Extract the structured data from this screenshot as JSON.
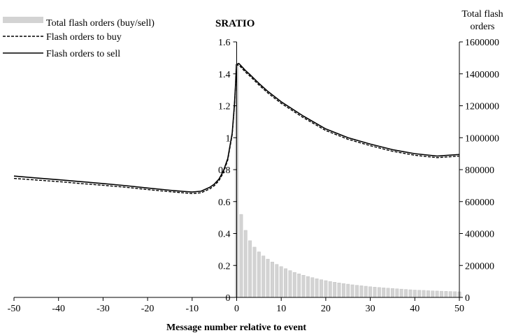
{
  "chart_data": {
    "type": "line",
    "title": "SRATIO",
    "xlabel": "Message number relative to event",
    "ylabel": "",
    "y2label_lines": [
      "Total flash",
      "orders"
    ],
    "xlim": [
      -50,
      50
    ],
    "ylim": [
      0,
      1.6
    ],
    "y2lim": [
      0,
      1600000
    ],
    "x_ticks": [
      "-50",
      "-40",
      "-30",
      "-20",
      "-10",
      "0",
      "10",
      "20",
      "30",
      "40",
      "50"
    ],
    "y_ticks": [
      "0",
      "0.2",
      "0.4",
      "0.6",
      "0.8",
      "1",
      "1.2",
      "1.4",
      "1.6"
    ],
    "y2_ticks": [
      "0",
      "200000",
      "400000",
      "600000",
      "800000",
      "1000000",
      "1200000",
      "1400000",
      "1600000"
    ],
    "legend_position": "top-left",
    "grid": false,
    "bars": {
      "name": "Total flash orders (buy/sell)",
      "axis": "right",
      "color": "#d3d3d3",
      "x": [
        0,
        1,
        2,
        3,
        4,
        5,
        6,
        7,
        8,
        9,
        10,
        11,
        12,
        13,
        14,
        15,
        16,
        17,
        18,
        19,
        20,
        21,
        22,
        23,
        24,
        25,
        26,
        27,
        28,
        29,
        30,
        31,
        32,
        33,
        34,
        35,
        36,
        37,
        38,
        39,
        40,
        41,
        42,
        43,
        44,
        45,
        46,
        47,
        48,
        49,
        50
      ],
      "values": [
        1460000,
        520000,
        420000,
        355000,
        315000,
        285000,
        260000,
        240000,
        222000,
        207000,
        193000,
        180000,
        168000,
        157000,
        148000,
        139000,
        131000,
        124000,
        117000,
        111000,
        105000,
        100000,
        95000,
        91000,
        87000,
        83000,
        79000,
        76000,
        73000,
        70000,
        67000,
        64000,
        62000,
        60000,
        58000,
        56000,
        54000,
        52000,
        50000,
        48000,
        46000,
        45000,
        44000,
        42000,
        41000,
        40000,
        39000,
        38000,
        37000,
        36000,
        35000
      ]
    },
    "series": [
      {
        "name": "Flash orders to buy",
        "style": "dashed",
        "x": [
          -50,
          -45,
          -40,
          -35,
          -30,
          -25,
          -20,
          -15,
          -12,
          -10,
          -8,
          -6,
          -5,
          -4,
          -3,
          -2,
          -1,
          -0.5,
          0,
          0.5,
          1,
          2,
          3,
          5,
          7,
          10,
          15,
          20,
          25,
          30,
          35,
          40,
          45,
          50
        ],
        "values": [
          0.745,
          0.735,
          0.725,
          0.713,
          0.702,
          0.69,
          0.675,
          0.662,
          0.655,
          0.65,
          0.655,
          0.68,
          0.7,
          0.73,
          0.78,
          0.86,
          1.02,
          1.2,
          1.455,
          1.455,
          1.44,
          1.41,
          1.385,
          1.33,
          1.28,
          1.215,
          1.125,
          1.045,
          0.99,
          0.95,
          0.915,
          0.89,
          0.875,
          0.885
        ]
      },
      {
        "name": "Flash orders to sell",
        "style": "solid",
        "x": [
          -50,
          -45,
          -40,
          -35,
          -30,
          -25,
          -20,
          -15,
          -12,
          -10,
          -8,
          -6,
          -5,
          -4,
          -3,
          -2,
          -1,
          -0.5,
          0,
          0.5,
          1,
          2,
          3,
          5,
          7,
          10,
          15,
          20,
          25,
          30,
          35,
          40,
          45,
          50
        ],
        "values": [
          0.76,
          0.748,
          0.737,
          0.725,
          0.713,
          0.7,
          0.685,
          0.671,
          0.664,
          0.66,
          0.665,
          0.69,
          0.71,
          0.74,
          0.79,
          0.87,
          1.03,
          1.21,
          1.46,
          1.465,
          1.45,
          1.42,
          1.395,
          1.34,
          1.29,
          1.225,
          1.135,
          1.055,
          1.0,
          0.96,
          0.925,
          0.9,
          0.885,
          0.895
        ]
      }
    ]
  }
}
